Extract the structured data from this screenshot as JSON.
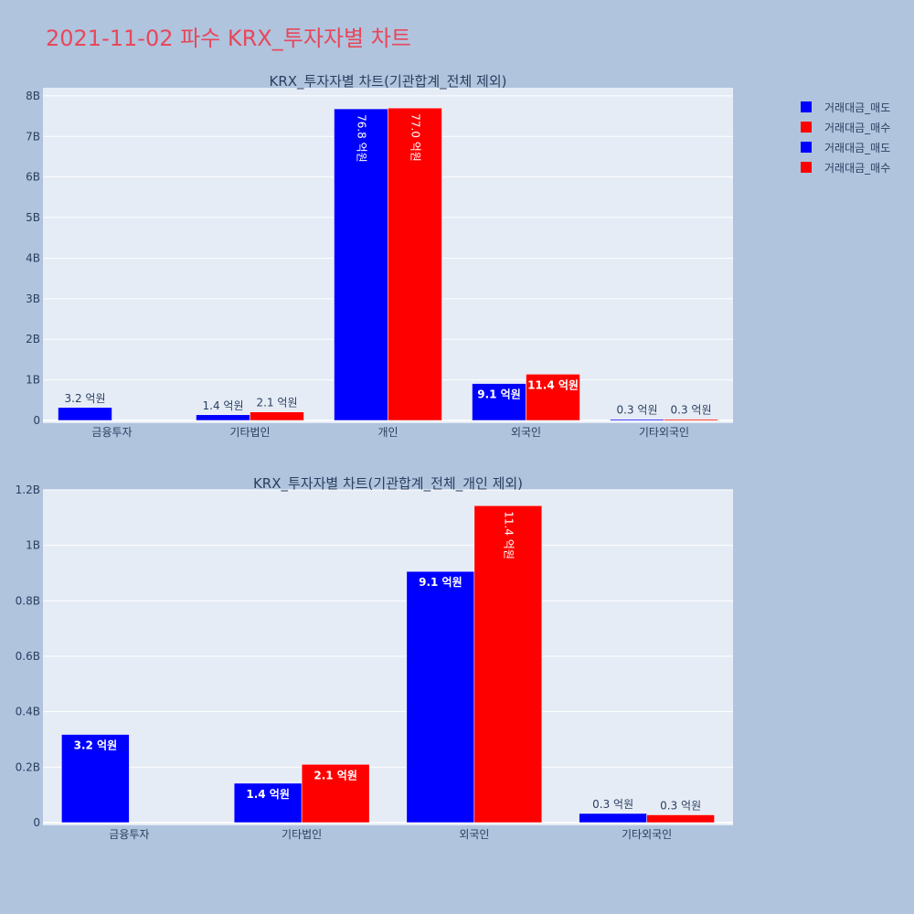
{
  "page": {
    "title": "2021-11-02 파수 KRX_투자자별 차트",
    "title_color": "#e8475b",
    "background": "#b0c4de",
    "plot_background": "#e5ecf6"
  },
  "legend": [
    {
      "label": "거래대금_매도",
      "color": "#0000ff"
    },
    {
      "label": "거래대금_매수",
      "color": "#ff0000"
    },
    {
      "label": "거래대금_매도",
      "color": "#0000ff"
    },
    {
      "label": "거래대금_매수",
      "color": "#ff0000"
    }
  ],
  "chart_data": [
    {
      "type": "bar",
      "title": "KRX_투자자별 차트(기관합계_전체 제외)",
      "categories": [
        "금융투자",
        "기타법인",
        "개인",
        "외국인",
        "기타외국인"
      ],
      "ylim": [
        0,
        8200000000
      ],
      "yticks": [
        {
          "value": 0,
          "label": "0"
        },
        {
          "value": 1000000000,
          "label": "1B"
        },
        {
          "value": 2000000000,
          "label": "2B"
        },
        {
          "value": 3000000000,
          "label": "3B"
        },
        {
          "value": 4000000000,
          "label": "4B"
        },
        {
          "value": 5000000000,
          "label": "5B"
        },
        {
          "value": 6000000000,
          "label": "6B"
        },
        {
          "value": 7000000000,
          "label": "7B"
        },
        {
          "value": 8000000000,
          "label": "8B"
        }
      ],
      "series": [
        {
          "name": "거래대금_매도",
          "color": "#0000ff",
          "values": [
            320000000,
            140000000,
            7680000000,
            910000000,
            30000000
          ],
          "labels": [
            "3.2 억원",
            "1.4 억원",
            "76.8 억원",
            "9.1 억원",
            "0.3 억원"
          ]
        },
        {
          "name": "거래대금_매수",
          "color": "#ff0000",
          "values": [
            0,
            210000000,
            7700000000,
            1140000000,
            30000000
          ],
          "labels": [
            "",
            "2.1 억원",
            "77.0 억원",
            "11.4 억원",
            "0.3 억원"
          ]
        }
      ],
      "grid": true
    },
    {
      "type": "bar",
      "title": "KRX_투자자별 차트(기관합계_전체_개인 제외)",
      "categories": [
        "금융투자",
        "기타법인",
        "외국인",
        "기타외국인"
      ],
      "ylim": [
        0,
        1200000000
      ],
      "yticks": [
        {
          "value": 0,
          "label": "0"
        },
        {
          "value": 200000000,
          "label": "0.2B"
        },
        {
          "value": 400000000,
          "label": "0.4B"
        },
        {
          "value": 600000000,
          "label": "0.6B"
        },
        {
          "value": 800000000,
          "label": "0.8B"
        },
        {
          "value": 1000000000,
          "label": "1B"
        },
        {
          "value": 1200000000,
          "label": "1.2B"
        }
      ],
      "series": [
        {
          "name": "거래대금_매도",
          "color": "#0000ff",
          "values": [
            318000000,
            142000000,
            906000000,
            33000000
          ],
          "labels": [
            "3.2 억원",
            "1.4 억원",
            "9.1 억원",
            "0.3 억원"
          ]
        },
        {
          "name": "거래대금_매수",
          "color": "#ff0000",
          "values": [
            0,
            210000000,
            1143000000,
            28000000
          ],
          "labels": [
            "",
            "2.1 억원",
            "11.4 억원",
            "0.3 억원"
          ]
        }
      ],
      "grid": true
    }
  ]
}
